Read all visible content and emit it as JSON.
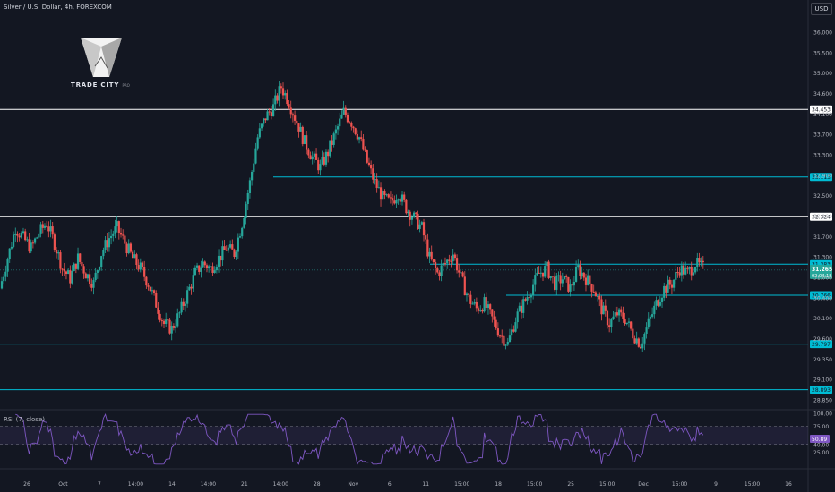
{
  "header": {
    "title": "Silver / U.S. Dollar, 4h, FOREXCOM",
    "currency": "USD"
  },
  "logo": {
    "name": "TRADE CITY",
    "suffix": "PRO"
  },
  "rsi": {
    "title": "RSI (7, close)",
    "value_label": "50.89",
    "ticks": [
      "100.00",
      "75.00",
      "40.00",
      "25.00"
    ]
  },
  "chart_data": {
    "type": "candlestick",
    "title": "Silver / U.S. Dollar, 4h, FOREXCOM",
    "y_ticks": [
      "36.000",
      "35.500",
      "35.000",
      "34.600",
      "34.100",
      "33.700",
      "33.300",
      "32.900",
      "32.500",
      "32.100",
      "31.700",
      "31.300",
      "31.000",
      "30.400",
      "30.100",
      "29.600",
      "29.350",
      "29.100",
      "28.850"
    ],
    "x_ticks": [
      "26",
      "Oct",
      "7",
      "14:00",
      "14",
      "14:00",
      "21",
      "14:00",
      "28",
      "Nov",
      "6",
      "11",
      "15:00",
      "18",
      "15:00",
      "25",
      "15:00",
      "Dec",
      "15:00",
      "9",
      "15:00",
      "16"
    ],
    "ylim": [
      28.85,
      36.0
    ],
    "current_price": "31.265",
    "countdown": "02:04:18",
    "levels": [
      {
        "value": 34.453,
        "label": "34.453",
        "color": "#ffffff"
      },
      {
        "value": 33.113,
        "label": "33.113",
        "color": "#00bcd4"
      },
      {
        "value": 32.324,
        "label": "32.324",
        "color": "#ffffff"
      },
      {
        "value": 31.383,
        "label": "31.383",
        "color": "#00bcd4"
      },
      {
        "value": 30.766,
        "label": "30.766",
        "color": "#00bcd4"
      },
      {
        "value": 29.797,
        "label": "29.797",
        "color": "#00bcd4"
      },
      {
        "value": 28.893,
        "label": "28.893",
        "color": "#00bcd4"
      }
    ],
    "path_close": [
      30.9,
      31.5,
      32.1,
      31.9,
      31.7,
      32.0,
      32.2,
      31.8,
      31.3,
      31.1,
      31.5,
      31.2,
      31.0,
      31.6,
      31.9,
      32.1,
      31.8,
      31.5,
      31.3,
      31.0,
      30.6,
      30.2,
      30.1,
      30.4,
      30.8,
      31.2,
      31.4,
      31.3,
      31.5,
      31.7,
      31.6,
      32.2,
      33.0,
      33.9,
      34.3,
      34.5,
      34.9,
      34.6,
      34.2,
      33.8,
      33.5,
      33.3,
      33.6,
      34.0,
      34.4,
      34.2,
      33.9,
      33.4,
      33.0,
      32.7,
      32.6,
      32.8,
      32.5,
      32.3,
      32.1,
      31.5,
      31.2,
      31.4,
      31.6,
      31.1,
      30.7,
      30.5,
      30.6,
      30.3,
      30.0,
      29.8,
      30.3,
      30.6,
      30.9,
      31.2,
      31.3,
      31.0,
      31.1,
      30.9,
      31.3,
      31.1,
      30.9,
      30.5,
      30.2,
      30.4,
      30.3,
      30.0,
      29.8,
      30.2,
      30.6,
      30.9,
      31.0,
      31.3,
      31.2,
      31.4,
      31.3
    ]
  }
}
